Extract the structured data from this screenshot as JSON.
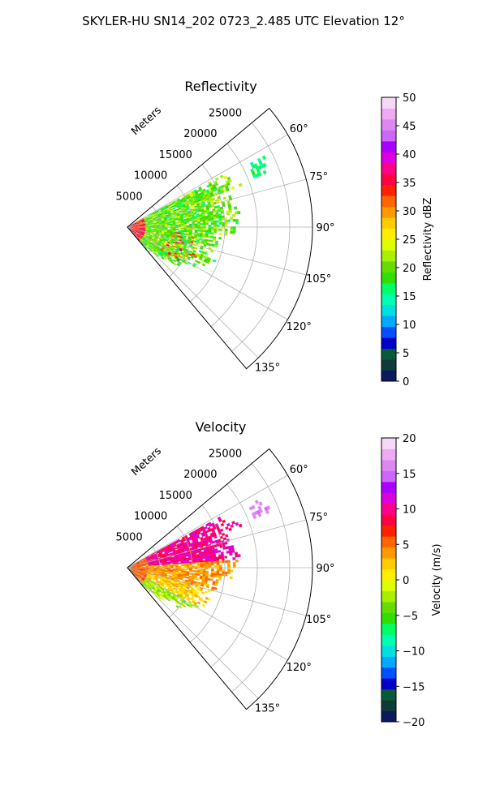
{
  "figure": {
    "suptitle": "SKYLER-HU  SN14_202  0723_2.485 UTC Elevation 12°"
  },
  "chart_data": [
    {
      "type": "heatmap",
      "title": "Reflectivity",
      "radial_axis_label": "Meters",
      "radial_ticks": [
        5000,
        10000,
        15000,
        20000,
        25000
      ],
      "radial_tick_labels": [
        "5000",
        "10000",
        "15000",
        "20000",
        "25000"
      ],
      "radial_range": [
        0,
        28500
      ],
      "angular_range_deg": [
        50,
        140
      ],
      "angular_ticks_deg": [
        60,
        75,
        90,
        105,
        120,
        135
      ],
      "angular_tick_labels": [
        "60°",
        "75°",
        "90°",
        "105°",
        "120°",
        "135°"
      ],
      "grid": true,
      "colorbar": {
        "label": "Reflectivity dBZ",
        "range": [
          0,
          50
        ],
        "ticks": [
          0,
          5,
          10,
          15,
          20,
          25,
          30,
          35,
          40,
          45,
          50
        ],
        "tick_labels": [
          "0",
          "5",
          "10",
          "15",
          "20",
          "25",
          "30",
          "35",
          "40",
          "45",
          "50"
        ]
      },
      "echo_summary": {
        "near_range_max_dbz": 38,
        "typical_dbz": [
          12,
          30
        ],
        "max_range_m": 24000
      }
    },
    {
      "type": "heatmap",
      "title": "Velocity",
      "radial_axis_label": "Meters",
      "radial_ticks": [
        5000,
        10000,
        15000,
        20000,
        25000
      ],
      "radial_tick_labels": [
        "5000",
        "10000",
        "15000",
        "20000",
        "25000"
      ],
      "radial_range": [
        0,
        28500
      ],
      "angular_range_deg": [
        50,
        140
      ],
      "angular_ticks_deg": [
        60,
        75,
        90,
        105,
        120,
        135
      ],
      "angular_tick_labels": [
        "60°",
        "75°",
        "90°",
        "105°",
        "120°",
        "135°"
      ],
      "grid": true,
      "colorbar": {
        "label": "Velocity (m/s)",
        "range": [
          -20,
          20
        ],
        "ticks": [
          -20,
          -15,
          -10,
          -5,
          0,
          5,
          10,
          15,
          20
        ],
        "tick_labels": [
          "−20",
          "−15",
          "−10",
          "−5",
          "0",
          "5",
          "10",
          "15",
          "20"
        ]
      },
      "echo_summary": {
        "north_sector_velocity": 10,
        "south_sector_velocity": -4,
        "far_north_velocity": 16
      }
    }
  ],
  "colors": {
    "reflectivity_scale": [
      "#0a1a5c",
      "#0f3a3a",
      "#0a5a3a",
      "#0000c8",
      "#0050ff",
      "#00aaff",
      "#00e0e0",
      "#00ffb0",
      "#00ff66",
      "#30e000",
      "#66dd00",
      "#aaee00",
      "#ddff00",
      "#ffee00",
      "#ffcc00",
      "#ff9900",
      "#ff6600",
      "#ff2200",
      "#ff0044",
      "#ff0088",
      "#dd00dd",
      "#aa00ff",
      "#cc66ff",
      "#dd88ee",
      "#eeaaf4",
      "#f6d8f8"
    ],
    "velocity_scale": [
      "#0a1a5c",
      "#0f3a3a",
      "#0a5a3a",
      "#0000c8",
      "#0050ff",
      "#00aaff",
      "#00e0e0",
      "#00ffb0",
      "#00ff66",
      "#30e000",
      "#66dd00",
      "#aaee00",
      "#ddff00",
      "#ffee00",
      "#ffcc00",
      "#ff9900",
      "#ff6600",
      "#ff2200",
      "#ff0044",
      "#ff0088",
      "#dd00dd",
      "#aa00ff",
      "#cc66ff",
      "#dd88ee",
      "#eeaaf4",
      "#f6d8f8"
    ]
  }
}
